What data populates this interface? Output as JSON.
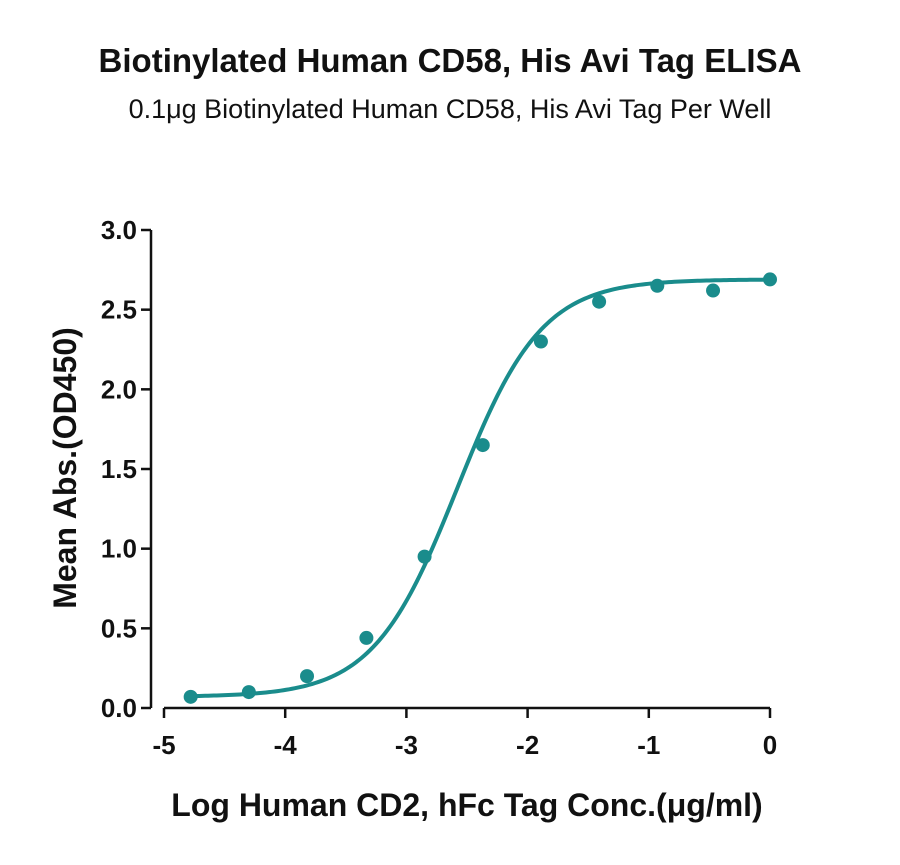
{
  "title": "Biotinylated Human CD58, His Avi Tag ELISA",
  "subtitle": "0.1μg Biotinylated Human CD58, His Avi Tag Per Well",
  "chart_data": {
    "type": "scatter",
    "title": "Biotinylated Human CD58, His Avi Tag ELISA",
    "subtitle": "0.1μg Biotinylated Human CD58, His Avi Tag Per Well",
    "xlabel": "Log Human CD2, hFc Tag Conc.(μg/ml)",
    "ylabel": "Mean Abs.(OD450)",
    "xlim": [
      -5,
      0
    ],
    "ylim": [
      0,
      3.0
    ],
    "x_ticks": [
      "-5",
      "-4",
      "-3",
      "-2",
      "-1",
      "0"
    ],
    "y_ticks": [
      "0.0",
      "0.5",
      "1.0",
      "1.5",
      "2.0",
      "2.5",
      "3.0"
    ],
    "grid": false,
    "series_color": "#1a8c8c",
    "series": [
      {
        "x": [
          -4.78,
          -4.3,
          -3.82,
          -3.33,
          -2.85,
          -2.37,
          -1.89,
          -1.41,
          -0.93,
          -0.47,
          0.0
        ],
        "y": [
          0.07,
          0.1,
          0.2,
          0.44,
          0.95,
          1.65,
          2.3,
          2.55,
          2.65,
          2.62,
          2.69
        ],
        "fit": "sigmoidal"
      }
    ]
  }
}
